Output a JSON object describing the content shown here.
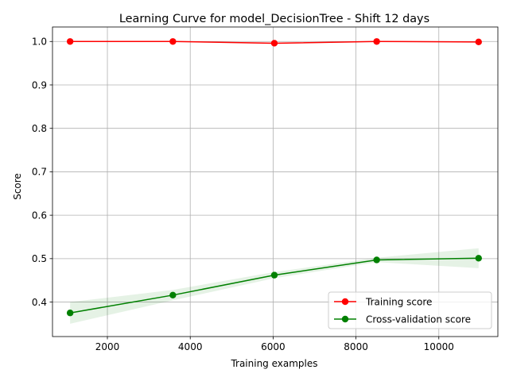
{
  "chart_data": {
    "type": "line",
    "title": "Learning Curve for model_DecisionTree - Shift 12 days",
    "xlabel": "Training examples",
    "ylabel": "Score",
    "xlim": [
      675,
      11425
    ],
    "ylim": [
      0.3206,
      1.0334
    ],
    "xticks": [
      2000,
      4000,
      6000,
      8000,
      10000
    ],
    "yticks": [
      0.4,
      0.5,
      0.6,
      0.7,
      0.8,
      0.9,
      1.0
    ],
    "xtick_labels": [
      "2000",
      "4000",
      "6000",
      "8000",
      "10000"
    ],
    "ytick_labels": [
      "0.4",
      "0.5",
      "0.6",
      "0.7",
      "0.8",
      "0.9",
      "1.0"
    ],
    "grid": true,
    "legend_position": "lower-right",
    "x": [
      1100,
      3580,
      6030,
      8500,
      10960
    ],
    "series": [
      {
        "name": "Training score",
        "color": "#ff0000",
        "marker": "circle",
        "values": [
          1.0,
          1.0,
          0.996,
          1.0,
          0.999
        ],
        "band_lower": [
          1.0,
          1.0,
          0.994,
          1.0,
          0.998
        ],
        "band_upper": [
          1.0,
          1.0,
          0.998,
          1.0,
          1.0
        ]
      },
      {
        "name": "Cross-validation score",
        "color": "#008000",
        "marker": "circle",
        "values": [
          0.375,
          0.416,
          0.462,
          0.497,
          0.501
        ],
        "band_lower": [
          0.35,
          0.404,
          0.455,
          0.492,
          0.478
        ],
        "band_upper": [
          0.4,
          0.428,
          0.469,
          0.502,
          0.524
        ]
      }
    ]
  }
}
